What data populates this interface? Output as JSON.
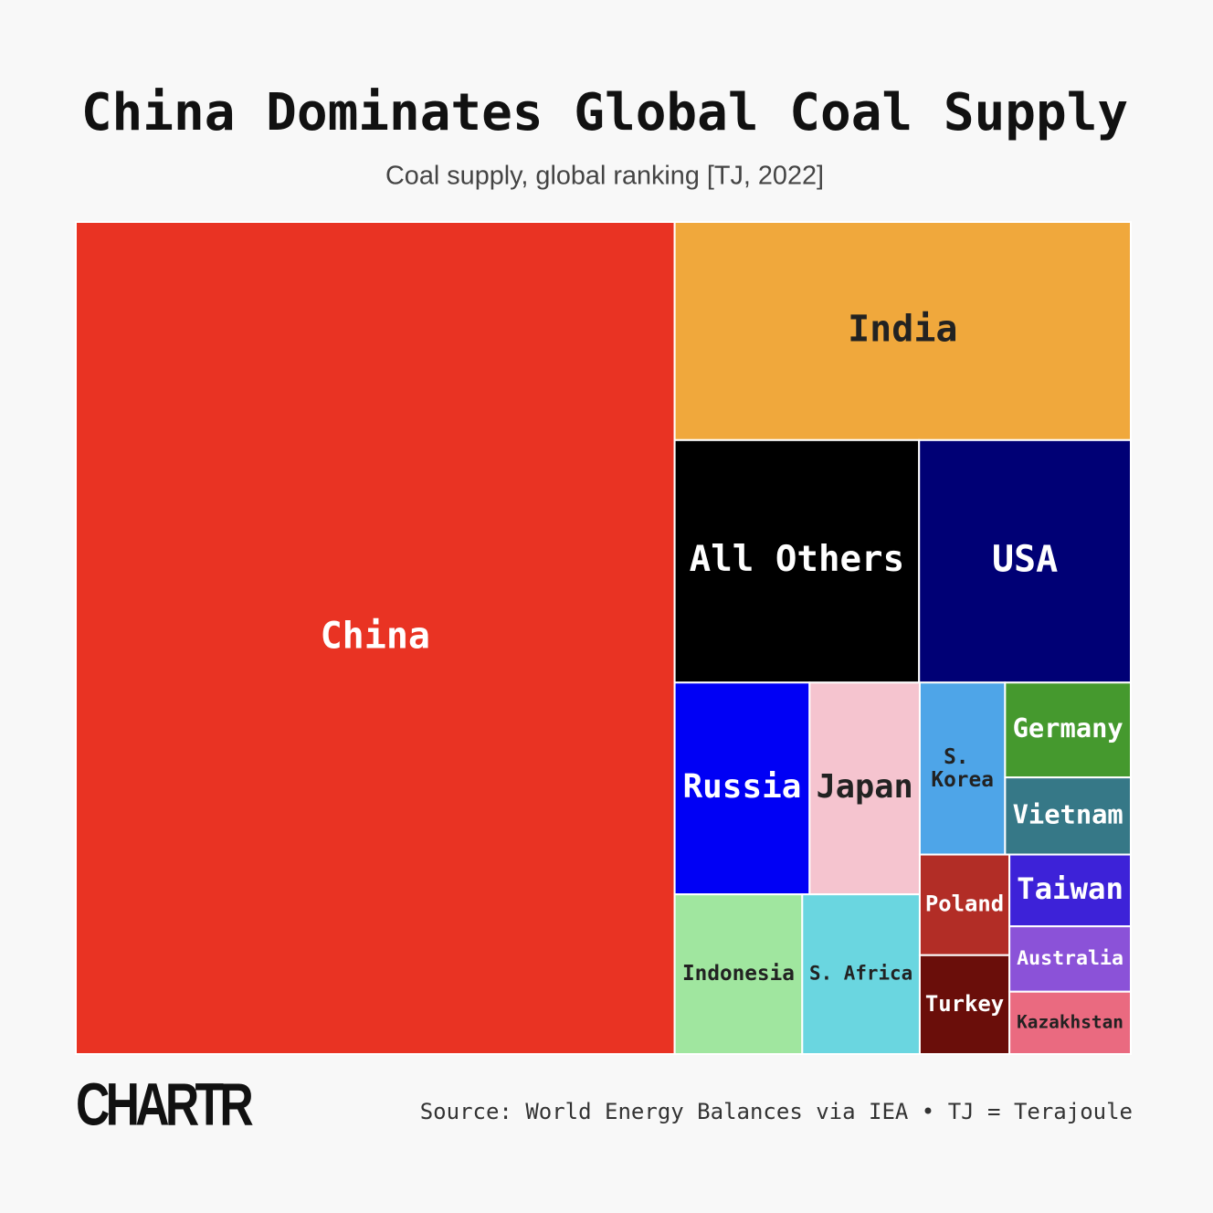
{
  "chart_data": {
    "type": "treemap",
    "title": "China Dominates Global Coal Supply",
    "subtitle": "Coal supply, global ranking [TJ, 2022]",
    "source": "Source: World Energy Balances via IEA • TJ = Terajoule",
    "logo": "CHARTR",
    "categories": [
      "China",
      "India",
      "All Others",
      "USA",
      "Russia",
      "Japan",
      "Indonesia",
      "S. Africa",
      "S. Korea",
      "Germany",
      "Vietnam",
      "Poland",
      "Turkey",
      "Taiwan",
      "Australia",
      "Kazakhstan"
    ],
    "values": [
      96100000,
      19190000,
      11430000,
      9900000,
      5510000,
      4500000,
      3930000,
      3620000,
      2830000,
      2300000,
      1870000,
      1740000,
      1710000,
      1680000,
      1530000,
      1460000
    ],
    "colors": [
      "#e93323",
      "#f0a83c",
      "#000000",
      "#000075",
      "#0000f5",
      "#f5c4cf",
      "#a0e69f",
      "#6ad6e0",
      "#4ea5e8",
      "#45992e",
      "#367887",
      "#b22d26",
      "#6a0e0a",
      "#3d22d8",
      "#8b52d8",
      "#ea6a80"
    ]
  }
}
